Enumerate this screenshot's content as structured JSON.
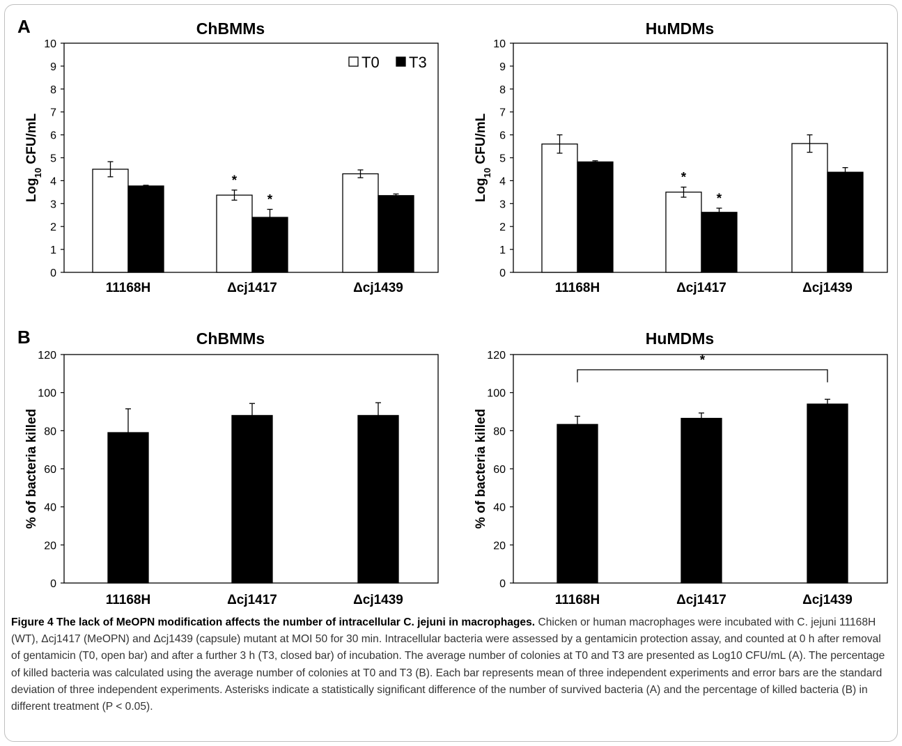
{
  "figure": {
    "panels": [
      {
        "letter": "A"
      },
      {
        "letter": "B"
      }
    ],
    "caption": {
      "title": "Figure 4  The lack of MeOPN modification affects the number of intracellular C. jejuni in macrophages.",
      "text": "Chicken or human macrophages were incubated with C. jejuni 11168H (WT), Δcj1417 (MeOPN) and Δcj1439 (capsule) mutant at MOI 50 for 30 min. Intracellular bacteria were assessed by a gentamicin protection assay, and counted at 0 h after removal of gentamicin (T0, open bar) and after a further 3 h (T3, closed bar) of incubation. The average number of colonies at T0 and T3 are presented as Log10 CFU/mL (A). The percentage of killed bacteria was calculated using the average number of colonies at T0 and T3 (B). Each bar represents mean of three independent experiments and error bars are the standard deviation of three independent experiments. Asterisks indicate a statistically significant difference of the number of survived bacteria (A) and the percentage of killed bacteria (B) in different treatment (P < 0.05)."
    }
  },
  "chart_data": [
    {
      "type": "bar",
      "title": "ChBMMs",
      "ylabel": "Log10 CFU/mL",
      "ylabel_sub": "10",
      "ylim": [
        0,
        10
      ],
      "yticks": [
        "0",
        "1",
        "2",
        "3",
        "4",
        "5",
        "6",
        "7",
        "8",
        "9",
        "10"
      ],
      "categories": [
        "11168H",
        "Δcj1417",
        "Δcj1439"
      ],
      "legend": {
        "position": "top-right"
      },
      "series": [
        {
          "name": "T0",
          "fill": "#ffffff",
          "values": [
            4.5,
            3.37,
            4.3
          ],
          "errors": [
            0.33,
            0.22,
            0.17
          ],
          "stars": [
            false,
            true,
            false
          ]
        },
        {
          "name": "T3",
          "fill": "#000000",
          "values": [
            3.77,
            2.4,
            3.35
          ],
          "errors": [
            0.03,
            0.35,
            0.07
          ],
          "stars": [
            false,
            true,
            false
          ]
        }
      ]
    },
    {
      "type": "bar",
      "title": "HuMDMs",
      "ylabel": "Log10 CFU/mL",
      "ylabel_sub": "10",
      "ylim": [
        0,
        10
      ],
      "yticks": [
        "0",
        "1",
        "2",
        "3",
        "4",
        "5",
        "6",
        "7",
        "8",
        "9",
        "10"
      ],
      "categories": [
        "11168H",
        "Δcj1417",
        "Δcj1439"
      ],
      "series": [
        {
          "name": "T0",
          "fill": "#ffffff",
          "values": [
            5.6,
            3.5,
            5.62
          ],
          "errors": [
            0.4,
            0.22,
            0.38
          ],
          "stars": [
            false,
            true,
            false
          ]
        },
        {
          "name": "T3",
          "fill": "#000000",
          "values": [
            4.82,
            2.62,
            4.37
          ],
          "errors": [
            0.05,
            0.18,
            0.2
          ],
          "stars": [
            false,
            true,
            false
          ]
        }
      ]
    },
    {
      "type": "bar",
      "title": "ChBMMs",
      "ylabel": "% of bacteria killed",
      "ylim": [
        0,
        120
      ],
      "yticks": [
        "0",
        "20",
        "40",
        "60",
        "80",
        "100",
        "120"
      ],
      "categories": [
        "11168H",
        "Δcj1417",
        "Δcj1439"
      ],
      "series": [
        {
          "fill": "#000000",
          "values": [
            79,
            88,
            88
          ],
          "errors": [
            12.5,
            6.3,
            6.7
          ]
        }
      ]
    },
    {
      "type": "bar",
      "title": "HuMDMs",
      "ylabel": "% of bacteria killed",
      "ylim": [
        0,
        120
      ],
      "yticks": [
        "0",
        "20",
        "40",
        "60",
        "80",
        "100",
        "120"
      ],
      "categories": [
        "11168H",
        "Δcj1417",
        "Δcj1439"
      ],
      "series": [
        {
          "fill": "#000000",
          "values": [
            83.3,
            86.5,
            94
          ],
          "errors": [
            4.3,
            2.8,
            2.5
          ]
        }
      ],
      "significance": {
        "from": 0,
        "to": 2,
        "y": 112,
        "mark": "*"
      }
    }
  ]
}
